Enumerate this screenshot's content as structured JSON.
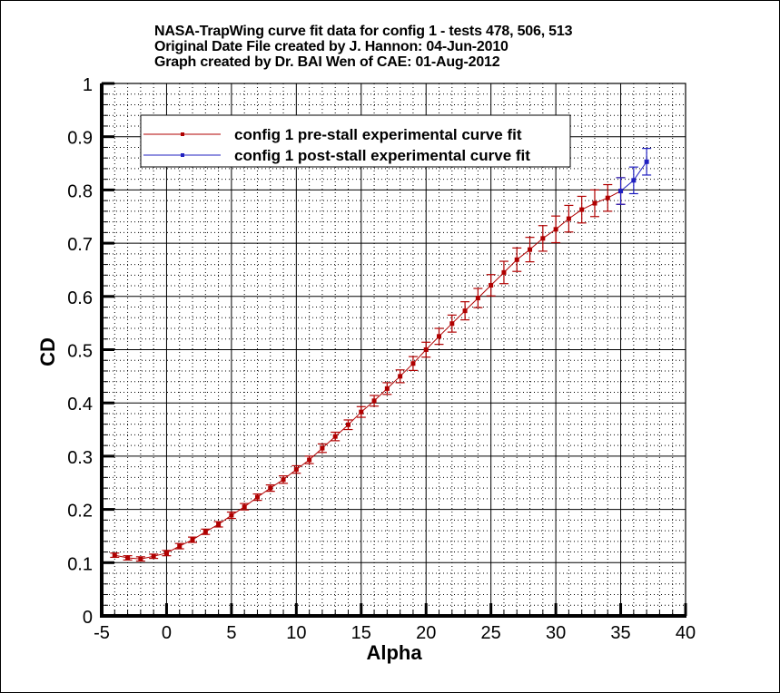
{
  "title": {
    "line1": "NASA-TrapWing curve fit data for config 1 - tests 478, 506, 513",
    "line2": "Original Date File created by J. Hannon: 04-Jun-2010",
    "line3": "Graph created by Dr. BAI Wen of CAE: 01-Aug-2012"
  },
  "axes": {
    "xlabel": "Alpha",
    "ylabel": "CD",
    "xticks": [
      "-5",
      "0",
      "5",
      "10",
      "15",
      "20",
      "25",
      "30",
      "35",
      "40"
    ],
    "yticks": [
      "0",
      "0.1",
      "0.2",
      "0.3",
      "0.4",
      "0.5",
      "0.6",
      "0.7",
      "0.8",
      "0.9",
      "1"
    ]
  },
  "legend": {
    "items": [
      {
        "label": "config 1 pre-stall experimental curve fit",
        "color": "#b00000"
      },
      {
        "label": "config 1 post-stall experimental curve fit",
        "color": "#2020c0"
      }
    ]
  },
  "colors": {
    "pre_stall": "#b00000",
    "post_stall": "#2020c0",
    "grid": "#000000"
  },
  "chart_data": {
    "type": "line",
    "title": "NASA-TrapWing curve fit data for config 1 - tests 478, 506, 513",
    "subtitle": "Original Date File created by J. Hannon: 04-Jun-2010 / Graph created by Dr. BAI Wen of CAE: 01-Aug-2012",
    "xlabel": "Alpha",
    "ylabel": "CD",
    "xlim": [
      -5,
      40
    ],
    "ylim": [
      0,
      1
    ],
    "grid": true,
    "minor_grid": {
      "x_step": 1,
      "y_step": 0.02
    },
    "legend_position": "upper left",
    "series": [
      {
        "name": "config 1 pre-stall experimental curve fit",
        "color": "#b00000",
        "x": [
          -4,
          -3,
          -2,
          -1,
          0,
          1,
          2,
          3,
          4,
          5,
          6,
          7,
          8,
          9,
          10,
          11,
          12,
          13,
          14,
          15,
          16,
          17,
          18,
          19,
          20,
          21,
          22,
          23,
          24,
          25,
          26,
          27,
          28,
          29,
          30,
          31,
          32,
          33,
          34,
          35
        ],
        "y": [
          0.114,
          0.109,
          0.107,
          0.112,
          0.118,
          0.131,
          0.143,
          0.158,
          0.172,
          0.189,
          0.205,
          0.223,
          0.24,
          0.256,
          0.275,
          0.293,
          0.315,
          0.337,
          0.359,
          0.383,
          0.404,
          0.427,
          0.45,
          0.474,
          0.5,
          0.525,
          0.549,
          0.573,
          0.597,
          0.621,
          0.645,
          0.669,
          0.688,
          0.709,
          0.726,
          0.746,
          0.763,
          0.775,
          0.785,
          0.798
        ],
        "error": [
          0.004,
          0.004,
          0.004,
          0.004,
          0.005,
          0.005,
          0.005,
          0.005,
          0.005,
          0.006,
          0.006,
          0.006,
          0.006,
          0.007,
          0.007,
          0.007,
          0.008,
          0.008,
          0.009,
          0.01,
          0.01,
          0.011,
          0.012,
          0.013,
          0.014,
          0.015,
          0.016,
          0.017,
          0.018,
          0.02,
          0.021,
          0.022,
          0.023,
          0.024,
          0.025,
          0.025,
          0.025,
          0.025,
          0.025,
          0.025
        ]
      },
      {
        "name": "config 1 post-stall experimental curve fit",
        "color": "#2020c0",
        "x": [
          35,
          36,
          37
        ],
        "y": [
          0.798,
          0.818,
          0.853
        ],
        "error": [
          0.025,
          0.025,
          0.025
        ]
      }
    ]
  }
}
